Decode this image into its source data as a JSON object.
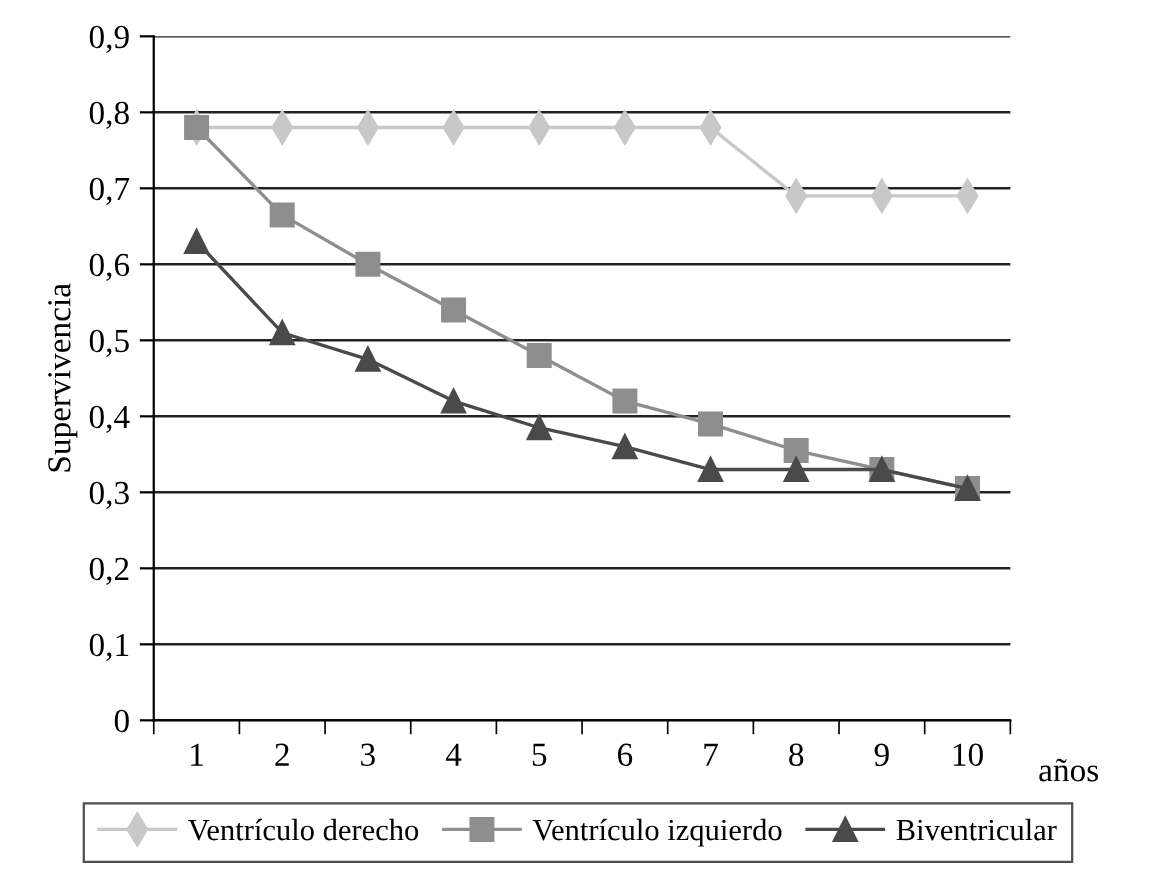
{
  "chart_data": {
    "type": "line",
    "ylabel": "Supervivencia",
    "xlabel": "años",
    "categories": [
      "1",
      "2",
      "3",
      "4",
      "5",
      "6",
      "7",
      "8",
      "9",
      "10"
    ],
    "series": [
      {
        "name": "Ventrículo derecho",
        "color": "#c8c8c8",
        "marker": "diamond",
        "values": [
          0.78,
          0.78,
          0.78,
          0.78,
          0.78,
          0.78,
          0.78,
          0.69,
          0.69,
          0.69
        ]
      },
      {
        "name": "Ventrículo izquierdo",
        "color": "#8e8e8e",
        "marker": "square",
        "values": [
          0.78,
          0.665,
          0.6,
          0.54,
          0.48,
          0.42,
          0.39,
          0.355,
          0.33,
          0.305
        ]
      },
      {
        "name": "Biventricular",
        "color": "#4a4a4a",
        "marker": "triangle",
        "values": [
          0.63,
          0.51,
          0.475,
          0.42,
          0.385,
          0.36,
          0.33,
          0.33,
          0.33,
          0.305
        ]
      }
    ],
    "ylim": [
      0,
      0.9
    ],
    "yticks": [
      0,
      {
        "value": 0.1,
        "label": "0,1"
      },
      {
        "value": 0.2,
        "label": "0,2"
      },
      {
        "value": 0.3,
        "label": "0,3"
      },
      {
        "value": 0.4,
        "label": "0,4"
      },
      {
        "value": 0.5,
        "label": "0,5"
      },
      {
        "value": 0.6,
        "label": "0,6"
      },
      {
        "value": 0.7,
        "label": "0,7"
      },
      {
        "value": 0.8,
        "label": "0,8"
      },
      {
        "value": 0.9,
        "label": "0,9"
      }
    ],
    "grid": "y",
    "legend": "bottom",
    "line_style": "solid"
  }
}
